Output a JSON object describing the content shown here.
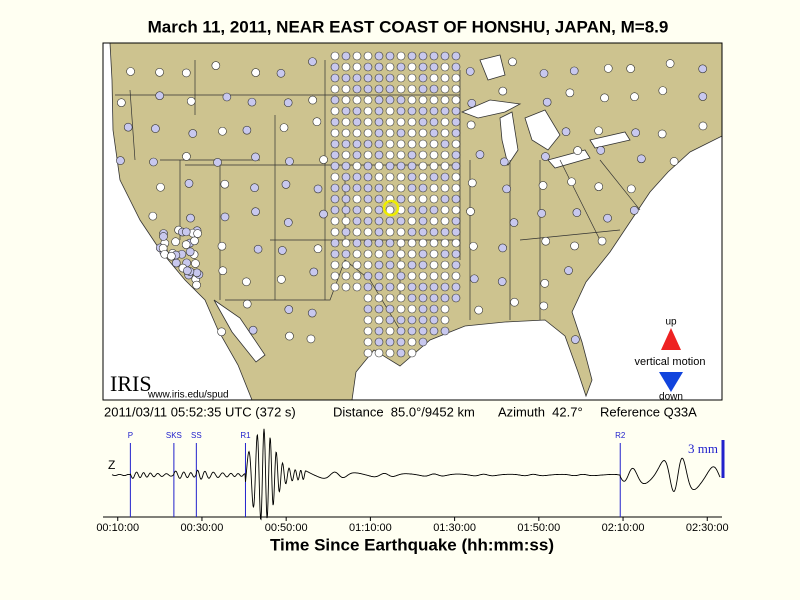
{
  "title": "March 11, 2011, NEAR EAST COAST OF HONSHU, JAPAN, M=8.9",
  "map": {
    "logo": "IRIS",
    "url": "www.iris.edu/spud",
    "legend": {
      "up": "up",
      "label": "vertical motion",
      "down": "down"
    }
  },
  "info": {
    "time": "2011/03/11 05:52:35 UTC (372 s)",
    "distance": "Distance  85.0°/9452 km",
    "azimuth": "Azimuth  42.7°",
    "reference": "Reference Q33A"
  },
  "chart_data": {
    "type": "seismogram",
    "channel": "Z",
    "scale": "3 mm",
    "x_label": "Time Since Earthquake (hh:mm:ss)",
    "xlim": [
      390,
      9210
    ],
    "xticks": [
      {
        "value": 600,
        "label": "00:10:00"
      },
      {
        "value": 1800,
        "label": "00:30:00"
      },
      {
        "value": 3000,
        "label": "00:50:00"
      },
      {
        "value": 4200,
        "label": "01:10:00"
      },
      {
        "value": 5400,
        "label": "01:30:00"
      },
      {
        "value": 6600,
        "label": "01:50:00"
      },
      {
        "value": 7800,
        "label": "02:10:00"
      },
      {
        "value": 9000,
        "label": "02:30:00"
      }
    ],
    "phases": [
      {
        "label": "P",
        "time": 780
      },
      {
        "label": "SKS",
        "time": 1400
      },
      {
        "label": "SS",
        "time": 1720
      },
      {
        "label": "R1",
        "time": 2420
      },
      {
        "label": "R2",
        "time": 7760
      }
    ]
  }
}
